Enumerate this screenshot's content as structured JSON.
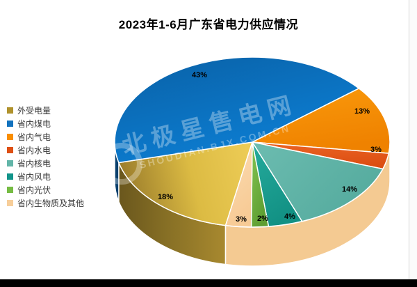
{
  "title": "2023年1-6月广东省电力供应情况",
  "watermark": {
    "line_cn": "北极星售电网",
    "line_en": "SHOUDIAN.BJX.COM.CN"
  },
  "chart_data": {
    "type": "pie",
    "style": "3d-pie",
    "title": "2023年1-6月广东省电力供应情况",
    "legend_position": "left",
    "clockwise": true,
    "unit": "%",
    "slices": [
      {
        "label": "外受电量",
        "value": 18,
        "display": "18%",
        "color": "#B0922C"
      },
      {
        "label": "省内煤电",
        "value": 43,
        "display": "43%",
        "color": "#1272BE"
      },
      {
        "label": "省内气电",
        "value": 13,
        "display": "13%",
        "color": "#F98E00"
      },
      {
        "label": "省内水电",
        "value": 3,
        "display": "3%",
        "color": "#DE5014"
      },
      {
        "label": "省内核电",
        "value": 14,
        "display": "14%",
        "color": "#62B5A8"
      },
      {
        "label": "省内风电",
        "value": 4,
        "display": "4%",
        "color": "#12948A"
      },
      {
        "label": "省内光伏",
        "value": 2,
        "display": "2%",
        "color": "#76BC43"
      },
      {
        "label": "省内生物质及其他",
        "value": 3,
        "display": "3%",
        "color": "#F7CE9A"
      }
    ]
  }
}
